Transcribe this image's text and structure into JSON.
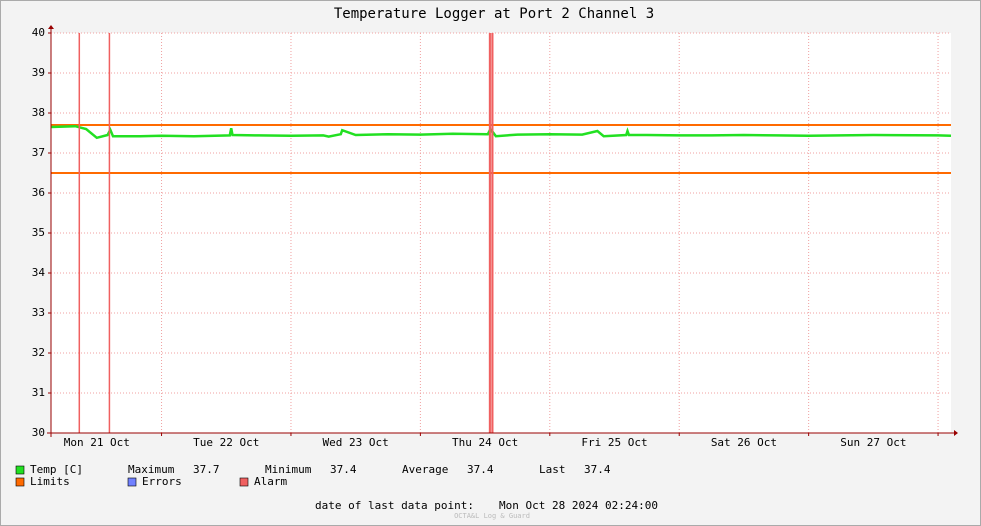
{
  "chart_data": {
    "type": "line",
    "title": "Temperature Logger at Port 2 Channel 3",
    "xlim": [
      "2024-10-21T03:30",
      "2024-10-28T02:24"
    ],
    "xticks": [
      {
        "value": "2024-10-21T12:00",
        "label": "Mon 21 Oct"
      },
      {
        "value": "2024-10-22T12:00",
        "label": "Tue 22 Oct"
      },
      {
        "value": "2024-10-23T12:00",
        "label": "Wed 23 Oct"
      },
      {
        "value": "2024-10-24T12:00",
        "label": "Thu 24 Oct"
      },
      {
        "value": "2024-10-25T12:00",
        "label": "Fri 25 Oct"
      },
      {
        "value": "2024-10-26T12:00",
        "label": "Sat 26 Oct"
      },
      {
        "value": "2024-10-27T12:00",
        "label": "Sun 27 Oct"
      }
    ],
    "xgrid": [
      "2024-10-22T00:00",
      "2024-10-23T00:00",
      "2024-10-24T00:00",
      "2024-10-25T00:00",
      "2024-10-26T00:00",
      "2024-10-27T00:00",
      "2024-10-28T00:00"
    ],
    "ylim": [
      30,
      40
    ],
    "yticks": [
      30,
      31,
      32,
      33,
      34,
      35,
      36,
      37,
      38,
      39,
      40
    ],
    "grid": true,
    "series": [
      {
        "name": "Temp [C]",
        "color": "#22e022",
        "x": [
          "2024-10-21T03:30",
          "2024-10-21T08:00",
          "2024-10-21T10:00",
          "2024-10-21T12:00",
          "2024-10-21T14:00",
          "2024-10-21T14:30",
          "2024-10-21T15:00",
          "2024-10-21T20:00",
          "2024-10-22T00:00",
          "2024-10-22T06:00",
          "2024-10-22T12:40",
          "2024-10-22T12:55",
          "2024-10-22T13:10",
          "2024-10-22T18:00",
          "2024-10-23T00:00",
          "2024-10-23T06:00",
          "2024-10-23T07:00",
          "2024-10-23T09:15",
          "2024-10-23T09:30",
          "2024-10-23T12:00",
          "2024-10-23T18:00",
          "2024-10-24T00:00",
          "2024-10-24T06:00",
          "2024-10-24T12:30",
          "2024-10-24T13:00",
          "2024-10-24T14:00",
          "2024-10-24T18:00",
          "2024-10-25T00:00",
          "2024-10-25T06:00",
          "2024-10-25T08:50",
          "2024-10-25T10:00",
          "2024-10-25T14:10",
          "2024-10-25T14:25",
          "2024-10-25T14:40",
          "2024-10-25T18:00",
          "2024-10-26T00:00",
          "2024-10-26T06:00",
          "2024-10-26T12:00",
          "2024-10-26T18:00",
          "2024-10-27T00:00",
          "2024-10-27T12:00",
          "2024-10-28T00:00",
          "2024-10-28T02:24"
        ],
        "values": [
          37.65,
          37.67,
          37.6,
          37.38,
          37.45,
          37.58,
          37.42,
          37.42,
          37.43,
          37.42,
          37.44,
          37.62,
          37.45,
          37.44,
          37.43,
          37.44,
          37.41,
          37.47,
          37.57,
          37.45,
          37.47,
          37.46,
          37.48,
          37.47,
          37.6,
          37.42,
          37.46,
          37.47,
          37.46,
          37.55,
          37.42,
          37.45,
          37.55,
          37.45,
          37.45,
          37.44,
          37.44,
          37.45,
          37.44,
          37.43,
          37.45,
          37.44,
          37.43
        ]
      }
    ],
    "limits": {
      "name": "Limits",
      "color": "#ff6a00",
      "values": [
        37.7,
        36.5
      ]
    },
    "errors": {
      "name": "Errors",
      "color": "#7080ff"
    },
    "alarm": {
      "name": "Alarm",
      "color": "#f06060",
      "times": [
        "2024-10-21T08:45",
        "2024-10-21T14:20",
        "2024-10-24T12:50",
        "2024-10-24T13:05",
        "2024-10-24T13:25"
      ]
    },
    "stats": [
      {
        "label": "Maximum",
        "value": 37.7
      },
      {
        "label": "Minimum",
        "value": 37.4
      },
      {
        "label": "Average",
        "value": 37.4
      },
      {
        "label": "Last",
        "value": 37.4
      }
    ],
    "footer": {
      "label": "date of last data point:",
      "value": "Mon Oct 28 2024 02:24:00"
    },
    "watermark": "OCTA&L Log & Guard"
  }
}
